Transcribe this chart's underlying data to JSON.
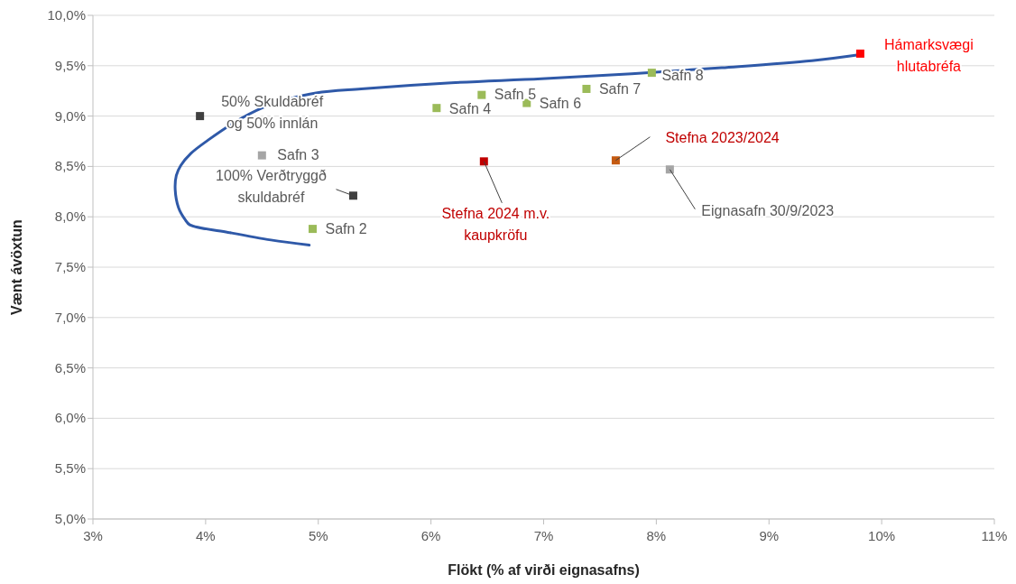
{
  "chart_data": {
    "type": "scatter",
    "xlabel": "Flökt (% af virði eignasafns)",
    "ylabel": "Vænt ávöxtun",
    "xlim": [
      3,
      11
    ],
    "xticks": [
      {
        "value": 3,
        "label": "3%"
      },
      {
        "value": 4,
        "label": "4%"
      },
      {
        "value": 5,
        "label": "5%"
      },
      {
        "value": 6,
        "label": "6%"
      },
      {
        "value": 7,
        "label": "7%"
      },
      {
        "value": 8,
        "label": "8%"
      },
      {
        "value": 9,
        "label": "9%"
      },
      {
        "value": 10,
        "label": "10%"
      },
      {
        "value": 11,
        "label": "11%"
      }
    ],
    "ylim": [
      5,
      10
    ],
    "yticks": [
      {
        "value": 5,
        "label": "5,0%"
      },
      {
        "value": 5.5,
        "label": "5,5%"
      },
      {
        "value": 6,
        "label": "6,0%"
      },
      {
        "value": 6.5,
        "label": "6,5%"
      },
      {
        "value": 7,
        "label": "7,0%"
      },
      {
        "value": 7.5,
        "label": "7,5%"
      },
      {
        "value": 8,
        "label": "8,0%"
      },
      {
        "value": 8.5,
        "label": "8,5%"
      },
      {
        "value": 9,
        "label": "9,0%"
      },
      {
        "value": 9.5,
        "label": "9,5%"
      },
      {
        "value": 10,
        "label": "10,0%"
      }
    ],
    "grid": "y",
    "marker": "square",
    "series": [
      {
        "type": "line",
        "marker": "none",
        "color": "#2f59a8",
        "x": [
          4.92,
          4.58,
          4.18,
          3.86,
          3.82,
          3.76,
          3.73,
          3.74,
          3.78,
          3.87,
          4.02,
          4.26,
          4.5,
          4.74,
          4.98,
          5.38,
          6.18,
          6.98,
          7.78,
          8.58,
          9.38,
          9.81
        ],
        "values": [
          7.72,
          7.77,
          7.85,
          7.92,
          7.97,
          8.09,
          8.27,
          8.41,
          8.51,
          8.63,
          8.76,
          8.94,
          9.08,
          9.17,
          9.23,
          9.27,
          9.33,
          9.37,
          9.42,
          9.48,
          9.55,
          9.61
        ]
      },
      {
        "x": [
          3.95,
          4.5,
          5.31,
          4.95,
          6.05,
          6.45,
          6.85,
          7.38,
          7.96,
          9.81,
          6.47,
          7.64,
          8.12
        ],
        "values": [
          9.0,
          8.61,
          8.21,
          7.88,
          9.08,
          9.21,
          9.13,
          9.27,
          9.43,
          9.62,
          8.55,
          8.56,
          8.47
        ],
        "colors": [
          "#404040",
          "#a5a5a5",
          "#404040",
          "#9bbb59",
          "#9bbb59",
          "#9bbb59",
          "#9bbb59",
          "#9bbb59",
          "#9bbb59",
          "#ff0000",
          "#c00000",
          "#c55a11",
          "#a5a5a5"
        ]
      }
    ],
    "annotations": [
      {
        "text": "50% Skuldabréf og 50% innlán",
        "x": 3.95,
        "y": 9.0
      },
      {
        "text": "Safn 3",
        "x": 4.5,
        "y": 8.61
      },
      {
        "text": "100% Verðtryggð skuldabréf",
        "x": 5.31,
        "y": 8.21
      },
      {
        "text": "Safn 2",
        "x": 4.95,
        "y": 7.88
      },
      {
        "text": "Safn 4",
        "x": 6.05,
        "y": 9.08
      },
      {
        "text": "Safn 5",
        "x": 6.45,
        "y": 9.21
      },
      {
        "text": "Safn 6",
        "x": 6.85,
        "y": 9.13
      },
      {
        "text": "Safn 7",
        "x": 7.38,
        "y": 9.27
      },
      {
        "text": "Safn 8",
        "x": 7.96,
        "y": 9.43
      },
      {
        "text": "Hámarksvægi hlutabréfa",
        "x": 9.81,
        "y": 9.62
      },
      {
        "text": "Stefna 2024 m.v. kaupkröfu",
        "x": 6.47,
        "y": 8.55
      },
      {
        "text": "Stefna 2023/2024",
        "x": 7.64,
        "y": 8.56
      },
      {
        "text": "Eignasafn 30/9/2023",
        "x": 8.12,
        "y": 8.47
      }
    ]
  }
}
